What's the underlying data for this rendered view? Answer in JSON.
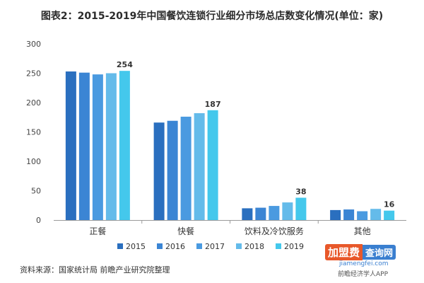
{
  "chart_data": {
    "type": "bar",
    "title": "图表2：2015-2019年中国餐饮连锁行业细分市场总店数变化情况(单位：家)",
    "categories": [
      "正餐",
      "快餐",
      "饮料及冷饮服务",
      "其他"
    ],
    "series": [
      {
        "name": "2015",
        "color": "#2a6fbf",
        "values": [
          253,
          166,
          20,
          17
        ]
      },
      {
        "name": "2016",
        "color": "#3b85d4",
        "values": [
          251,
          169,
          21,
          18
        ]
      },
      {
        "name": "2017",
        "color": "#4a9ae0",
        "values": [
          248,
          176,
          24,
          15
        ]
      },
      {
        "name": "2018",
        "color": "#64bbea",
        "values": [
          250,
          182,
          30,
          19
        ]
      },
      {
        "name": "2019",
        "color": "#44c8ec",
        "values": [
          254,
          187,
          38,
          16
        ]
      }
    ],
    "data_labels": [
      "254",
      "187",
      "38",
      "16"
    ],
    "yticks": [
      "0",
      "50",
      "100",
      "150",
      "200",
      "250",
      "300"
    ],
    "ylim": [
      0,
      300
    ],
    "grid": false,
    "legend_position": "bottom-center"
  },
  "source": "资料来源：国家统计局 前瞻产业研究院整理",
  "watermark_logo": {
    "part1": "加盟费",
    "part2": "查询网",
    "url": "jiamengfei.com"
  },
  "watermark_app": "前瞻经济学人APP"
}
